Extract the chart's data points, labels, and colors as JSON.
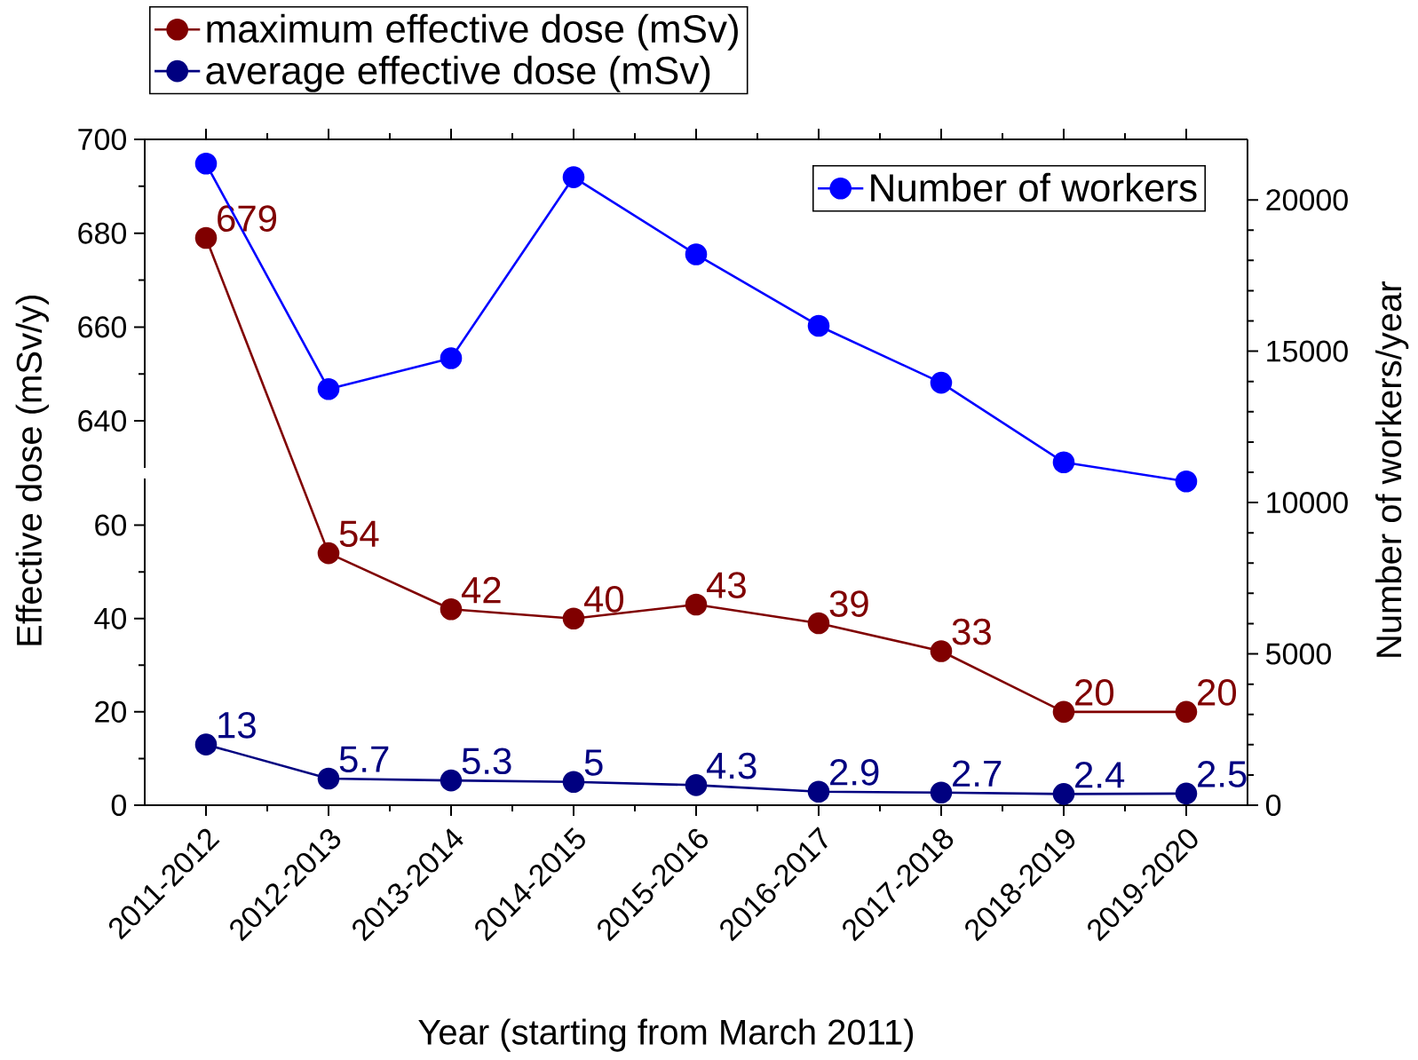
{
  "chart_data": [
    {
      "type": "line",
      "categories": [
        null,
        null,
        null,
        null,
        null,
        null,
        null,
        null,
        null
      ],
      "ylim": [
        630,
        700
      ],
      "yticks": [
        640,
        660,
        680,
        700
      ],
      "tick_labels": "y",
      "marker": "circle",
      "data_labels": true,
      "series": [
        {
          "color": "#800000",
          "values": [
            679,
            null,
            null,
            null,
            null,
            null,
            null,
            null,
            null
          ]
        }
      ]
    },
    {
      "type": "line",
      "categories": [
        "2011-2012",
        "2012-2013",
        "2013-2014",
        "2014-2015",
        "2015-2016",
        "2016-2017",
        "2017-2018",
        "2018-2019",
        "2019-2020"
      ],
      "xlabel": "Year (starting from March 2011)",
      "ylabel": "Effective dose (mSv/y)",
      "ylim": [
        0,
        70
      ],
      "yticks": [
        0,
        20,
        40,
        60
      ],
      "marker": "circle",
      "data_labels": true,
      "legend": "top left",
      "series": [
        {
          "name": "maximum effective dose (mSv)",
          "color": "#800000",
          "values": [
            null,
            54,
            42,
            40,
            43,
            39,
            33,
            20,
            20
          ]
        },
        {
          "name": "average effective dose (mSv)",
          "color": "#000080",
          "values": [
            13,
            5.7,
            5.3,
            5,
            4.3,
            2.9,
            2.7,
            2.4,
            2.5
          ]
        }
      ]
    },
    {
      "type": "line",
      "categories": [
        null,
        null,
        null,
        null,
        null,
        null,
        null,
        null,
        null
      ],
      "ylabel": "Number of workers/year",
      "ylim": [
        0,
        22000
      ],
      "yticks": [
        0,
        5000,
        10000,
        15000,
        20000
      ],
      "tick_labels": "y",
      "marker": "circle",
      "legend": "top right",
      "series": [
        {
          "name": "Number of workers",
          "color": "#0000ff",
          "values": [
            21200,
            13750,
            14770,
            20750,
            18200,
            15840,
            13960,
            11330,
            10700
          ]
        }
      ]
    }
  ]
}
